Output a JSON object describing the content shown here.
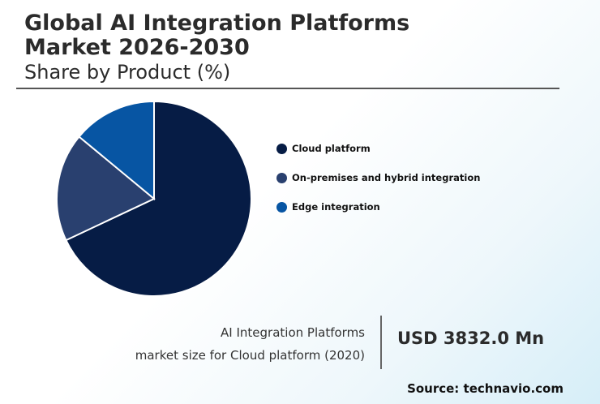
{
  "title_line1": "Global AI Integration Platforms",
  "title_line2": "Market 2026-2030",
  "subtitle": "Share by Product (%)",
  "chart_data": {
    "type": "pie",
    "slices": [
      {
        "label": "Cloud platform",
        "value": 68,
        "color": "#061c45"
      },
      {
        "label": "On-premises and hybrid integration",
        "value": 18,
        "color": "#29406f"
      },
      {
        "label": "Edge integration",
        "value": 14,
        "color": "#0755a3"
      }
    ]
  },
  "market_label_line1": "AI Integration Platforms",
  "market_label_line2": "market size for Cloud platform (2020)",
  "market_value": "USD 3832.0 Mn",
  "source": "Source: technavio.com"
}
